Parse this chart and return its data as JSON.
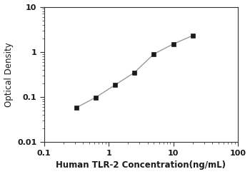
{
  "x_values": [
    0.313,
    0.625,
    1.25,
    2.5,
    5.0,
    10.0,
    20.0
  ],
  "y_values": [
    0.058,
    0.098,
    0.185,
    0.35,
    0.9,
    1.5,
    2.3
  ],
  "xlabel": "Human TLR-2 Concentration(ng/mL)",
  "ylabel": "Optical Density",
  "xlim": [
    0.2,
    100
  ],
  "ylim": [
    0.01,
    10
  ],
  "line_color": "#999999",
  "marker_color": "#1a1a1a",
  "marker": "s",
  "marker_size": 5,
  "line_width": 1.0,
  "xlabel_fontsize": 8.5,
  "ylabel_fontsize": 8.5,
  "tick_fontsize": 8,
  "background_color": "#ffffff",
  "spine_color": "#333333",
  "xlabel_bold": true,
  "tick_labels_bold": true
}
